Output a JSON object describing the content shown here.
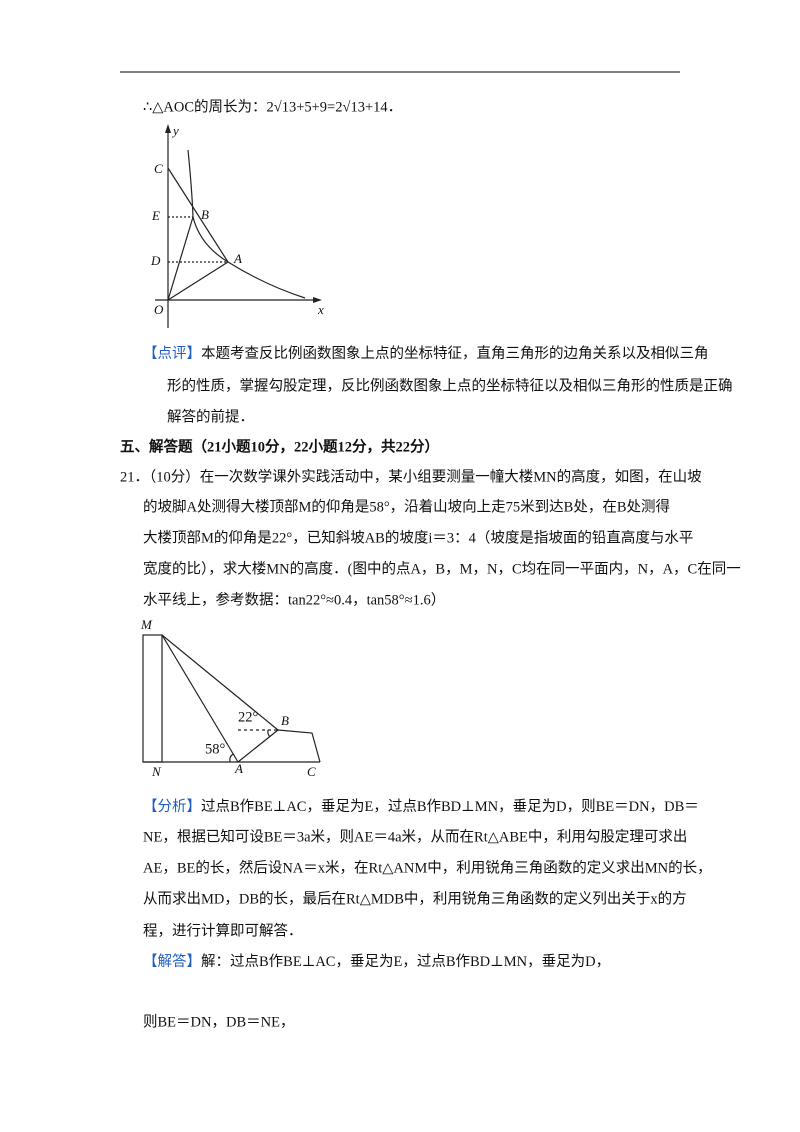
{
  "top_result": "∴△AOC的周长为：2√13+5+9=2√13+14．",
  "figure1": {
    "labels": [
      "y",
      "C",
      "E",
      "B",
      "D",
      "A",
      "O",
      "x"
    ]
  },
  "review": {
    "tag": "【点评】",
    "lines": [
      "本题考查反比例函数图象上点的坐标特征，直角三角形的边角关系以及相似三角",
      "形的性质，掌握勾股定理，反比例函数图象上点的坐标特征以及相似三角形的性质是正确",
      "解答的前提．"
    ]
  },
  "section_heading": "五、解答题（21小题10分，22小题12分，共22分）",
  "problem": {
    "lines": [
      "21．（10分）在一次数学课外实践活动中，某小组要测量一幢大楼MN的高度，如图，在山坡",
      "的坡脚A处测得大楼顶部M的仰角是58°，沿着山坡向上走75米到达B处，在B处测得",
      "大楼顶部M的仰角是22°，已知斜坡AB的坡度i＝3：4（坡度是指坡面的铅直高度与水平",
      "宽度的比），求大楼MN的高度．(图中的点A，B，M，N，C均在同一平面内，N，A，C在同一",
      "水平线上，参考数据：tan22°≈0.4，tan58°≈1.6）"
    ]
  },
  "figure2": {
    "labels": [
      "M",
      "22°",
      "B",
      "58°",
      "N",
      "A",
      "C"
    ]
  },
  "analysis": {
    "tag": "【分析】",
    "lines": [
      "过点B作BE⊥AC，垂足为E，过点B作BD⊥MN，垂足为D，则BE＝DN，DB＝",
      "NE，根据已知可设BE＝3a米，则AE＝4a米，从而在Rt△ABE中，利用勾股定理可求出",
      "AE，BE的长，然后设NA＝x米，在Rt△ANM中，利用锐角三角函数的定义求出MN的长，",
      "从而求出MD，DB的长，最后在Rt△MDB中，利用锐角三角函数的定义列出关于x的方",
      "程，进行计算即可解答．"
    ]
  },
  "solution": {
    "tag": "【解答】",
    "lines": [
      "解：过点B作BE⊥AC，垂足为E，过点B作BD⊥MN，垂足为D，"
    ]
  },
  "conclusion": "则BE＝DN，DB＝NE，"
}
